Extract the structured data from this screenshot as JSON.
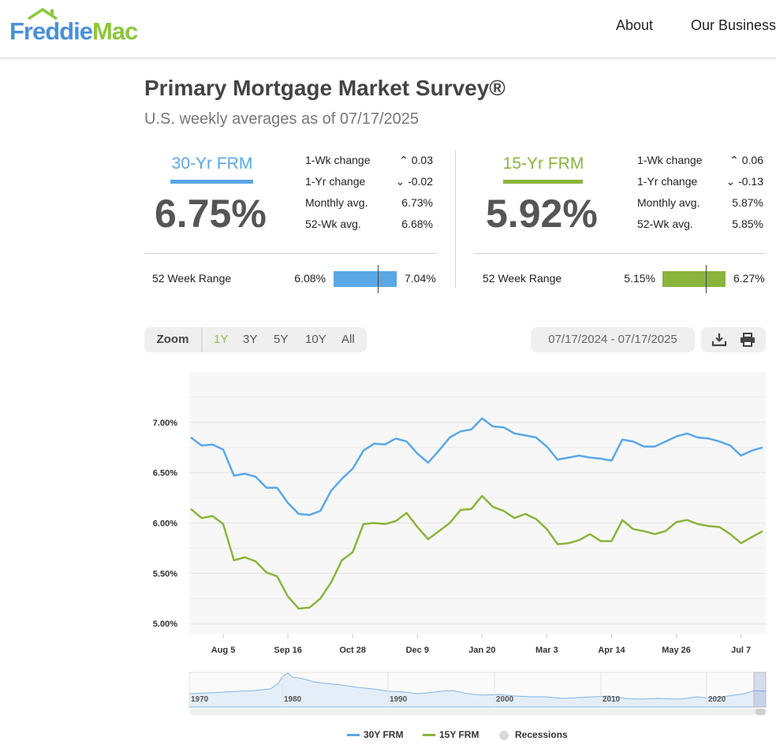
{
  "header": {
    "logo_part1": "Freddie",
    "logo_part2": "Mac",
    "nav": {
      "about": "About",
      "our_business": "Our Business"
    }
  },
  "page": {
    "title": "Primary Mortgage Market Survey®",
    "subtitle": "U.S. weekly averages as of 07/17/2025"
  },
  "colors": {
    "frm30": "#5aa7e6",
    "frm15": "#8ab43c",
    "recession": "#d9d9d9"
  },
  "rates": [
    {
      "label": "30-Yr FRM",
      "value": "6.75%",
      "stats": [
        {
          "label": "1-Wk change",
          "value": "0.03",
          "direction": "up"
        },
        {
          "label": "1-Yr change",
          "value": "-0.02",
          "direction": "down"
        },
        {
          "label": "Monthly avg.",
          "value": "6.73%"
        },
        {
          "label": "52-Wk avg.",
          "value": "6.68%"
        }
      ],
      "range": {
        "label": "52 Week Range",
        "min": "6.08%",
        "max": "7.04%",
        "position": 0.7
      }
    },
    {
      "label": "15-Yr FRM",
      "value": "5.92%",
      "stats": [
        {
          "label": "1-Wk change",
          "value": "0.06",
          "direction": "up"
        },
        {
          "label": "1-Yr change",
          "value": "-0.13",
          "direction": "down"
        },
        {
          "label": "Monthly avg.",
          "value": "5.87%"
        },
        {
          "label": "52-Wk avg.",
          "value": "5.85%"
        }
      ],
      "range": {
        "label": "52 Week Range",
        "min": "5.15%",
        "max": "6.27%",
        "position": 0.69
      }
    }
  ],
  "controls": {
    "zoom_label": "Zoom",
    "zoom_options": [
      "1Y",
      "3Y",
      "5Y",
      "10Y",
      "All"
    ],
    "zoom_active": "1Y",
    "date_range": "07/17/2024 - 07/17/2025",
    "download_icon": "download-icon",
    "print_icon": "print-icon"
  },
  "chart_data": {
    "type": "line",
    "x_tick_labels": [
      "Aug 5",
      "Sep 16",
      "Oct 28",
      "Dec 9",
      "Jan 20",
      "Mar 3",
      "Apr 14",
      "May 26",
      "Jul 7"
    ],
    "y_tick_labels": [
      "5.00%",
      "5.50%",
      "6.00%",
      "6.50%",
      "7.00%"
    ],
    "ylim": [
      4.9,
      7.5
    ],
    "grid": true,
    "series": [
      {
        "name": "30Y FRM",
        "color": "#5aa7e6",
        "values": [
          6.85,
          6.77,
          6.78,
          6.73,
          6.47,
          6.49,
          6.46,
          6.35,
          6.35,
          6.2,
          6.09,
          6.08,
          6.12,
          6.32,
          6.44,
          6.54,
          6.72,
          6.79,
          6.78,
          6.84,
          6.81,
          6.69,
          6.6,
          6.72,
          6.85,
          6.91,
          6.93,
          7.04,
          6.96,
          6.95,
          6.89,
          6.87,
          6.85,
          6.76,
          6.63,
          6.65,
          6.67,
          6.65,
          6.64,
          6.62,
          6.83,
          6.81,
          6.76,
          6.76,
          6.81,
          6.86,
          6.89,
          6.85,
          6.84,
          6.81,
          6.77,
          6.67,
          6.72,
          6.75
        ]
      },
      {
        "name": "15Y FRM",
        "color": "#8ab43c",
        "values": [
          6.14,
          6.05,
          6.07,
          5.99,
          5.63,
          5.66,
          5.62,
          5.51,
          5.47,
          5.27,
          5.15,
          5.16,
          5.25,
          5.41,
          5.63,
          5.71,
          5.99,
          6.0,
          5.99,
          6.02,
          6.1,
          5.96,
          5.84,
          5.92,
          6.0,
          6.13,
          6.14,
          6.27,
          6.16,
          6.12,
          6.05,
          6.09,
          6.04,
          5.94,
          5.79,
          5.8,
          5.83,
          5.89,
          5.82,
          5.82,
          6.03,
          5.94,
          5.92,
          5.89,
          5.92,
          6.01,
          6.03,
          5.99,
          5.97,
          5.96,
          5.89,
          5.8,
          5.86,
          5.92
        ]
      }
    ],
    "navigator": {
      "tick_labels": [
        "1970",
        "1980",
        "1990",
        "2000",
        "2010",
        "2020"
      ]
    },
    "legend": [
      "30Y FRM",
      "15Y FRM",
      "Recessions"
    ],
    "legend_position": "bottom"
  }
}
